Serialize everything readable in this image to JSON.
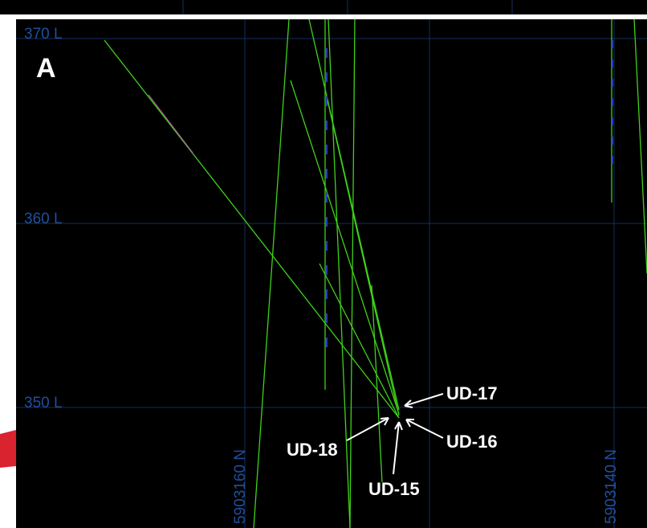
{
  "panel_label": "A",
  "levels": [
    "370 L",
    "360 L",
    "350 L"
  ],
  "northings": [
    "5903160 N",
    "5903140 N"
  ],
  "holes": [
    "UD-17",
    "UD-16",
    "UD-18",
    "UD-15"
  ]
}
